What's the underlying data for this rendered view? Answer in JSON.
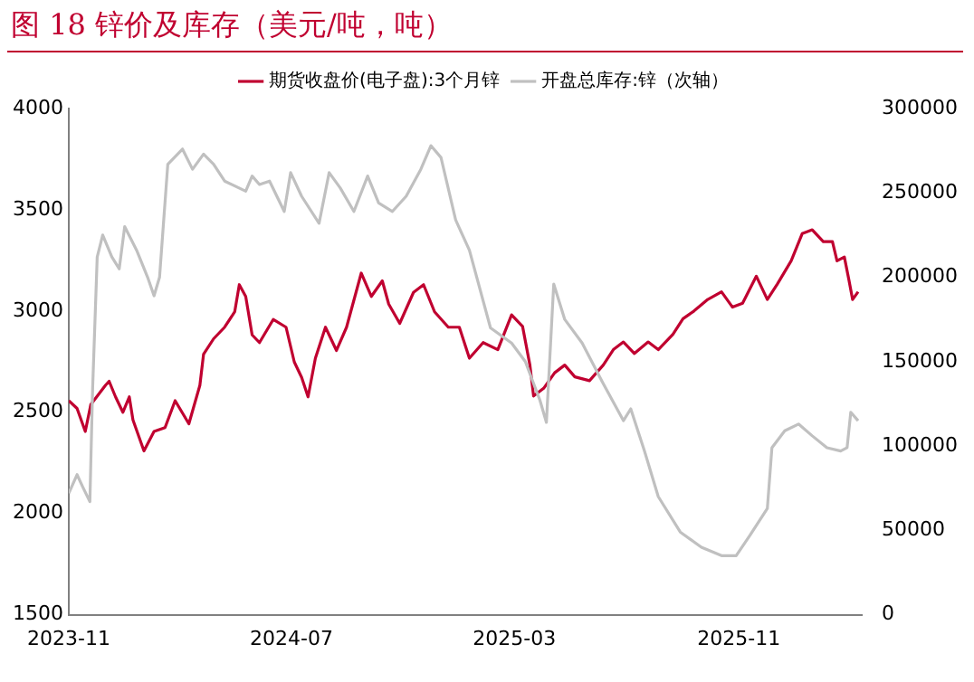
{
  "chart_data": {
    "type": "line",
    "title": "图 18 锌价及库存（美元/吨，吨）",
    "xlim": [
      "2023-11-01",
      "2026-03-15"
    ],
    "xticks": [
      "2023-11",
      "2024-07",
      "2025-03",
      "2025-11"
    ],
    "ylim": [
      1500,
      4000
    ],
    "yticks": [
      1500,
      2000,
      2500,
      3000,
      3500,
      4000
    ],
    "y2lim": [
      0,
      300000
    ],
    "y2ticks": [
      0,
      50000,
      100000,
      150000,
      200000,
      250000,
      300000
    ],
    "grid": false,
    "legend": "top",
    "marker": "none",
    "line_style": "solid",
    "series": [
      {
        "name": "期货收盘价(电子盘):3个月锌",
        "color": "#c00030",
        "x": [
          "2023-11-01",
          "2023-11-10",
          "2023-11-19",
          "2023-11-25",
          "2023-12-11",
          "2023-12-15",
          "2023-12-22",
          "2023-12-30",
          "2024-01-06",
          "2024-01-10",
          "2024-01-22",
          "2024-02-02",
          "2024-02-14",
          "2024-02-25",
          "2024-03-11",
          "2024-03-23",
          "2024-03-27",
          "2024-04-07",
          "2024-04-19",
          "2024-04-30",
          "2024-05-05",
          "2024-05-12",
          "2024-05-19",
          "2024-05-27",
          "2024-06-11",
          "2024-06-25",
          "2024-07-04",
          "2024-07-12",
          "2024-07-19",
          "2024-07-27",
          "2024-08-07",
          "2024-08-19",
          "2024-08-30",
          "2024-09-15",
          "2024-09-26",
          "2024-10-08",
          "2024-10-15",
          "2024-10-27",
          "2024-11-11",
          "2024-11-22",
          "2024-12-04",
          "2024-12-19",
          "2024-12-31",
          "2025-01-11",
          "2025-01-26",
          "2025-02-11",
          "2025-02-26",
          "2025-03-10",
          "2025-03-18",
          "2025-03-22",
          "2025-04-02",
          "2025-04-14",
          "2025-04-25",
          "2025-05-06",
          "2025-05-22",
          "2025-06-06",
          "2025-06-17",
          "2025-06-28",
          "2025-07-10",
          "2025-07-25",
          "2025-08-05",
          "2025-08-21",
          "2025-09-01",
          "2025-09-13",
          "2025-09-28",
          "2025-10-13",
          "2025-10-25",
          "2025-11-05",
          "2025-11-20",
          "2025-12-02",
          "2025-12-13",
          "2025-12-28",
          "2026-01-09",
          "2026-01-20",
          "2026-02-01",
          "2026-02-11",
          "2026-02-16",
          "2026-02-24",
          "2026-03-01",
          "2026-03-05",
          "2026-03-11"
        ],
        "values": [
          2557,
          2519,
          2405,
          2538,
          2633,
          2653,
          2576,
          2500,
          2576,
          2462,
          2309,
          2405,
          2424,
          2557,
          2443,
          2633,
          2786,
          2863,
          2920,
          2996,
          3130,
          3072,
          2882,
          2844,
          2958,
          2920,
          2748,
          2672,
          2576,
          2767,
          2920,
          2805,
          2920,
          3187,
          3072,
          3149,
          3034,
          2939,
          3092,
          3130,
          2996,
          2920,
          2920,
          2767,
          2844,
          2809,
          2981,
          2924,
          2733,
          2580,
          2618,
          2695,
          2733,
          2675,
          2656,
          2733,
          2809,
          2847,
          2790,
          2847,
          2809,
          2885,
          2962,
          3000,
          3057,
          3095,
          3019,
          3038,
          3172,
          3057,
          3134,
          3248,
          3382,
          3401,
          3343,
          3343,
          3248,
          3267,
          3153,
          3057,
          3095
        ]
      },
      {
        "name": "开盘总库存:锌（次轴）",
        "color": "#c0c0c0",
        "axis": "y2",
        "x": [
          "2023-11-01",
          "2023-11-10",
          "2023-11-16",
          "2023-11-24",
          "2023-11-27",
          "2023-12-02",
          "2023-12-08",
          "2023-12-18",
          "2023-12-26",
          "2024-01-01",
          "2024-01-14",
          "2024-01-26",
          "2024-02-02",
          "2024-02-08",
          "2024-02-17",
          "2024-03-04",
          "2024-03-15",
          "2024-03-27",
          "2024-04-07",
          "2024-04-19",
          "2024-05-12",
          "2024-05-19",
          "2024-05-27",
          "2024-06-07",
          "2024-06-23",
          "2024-06-30",
          "2024-07-12",
          "2024-07-31",
          "2024-08-11",
          "2024-08-23",
          "2024-09-07",
          "2024-09-22",
          "2024-10-04",
          "2024-10-19",
          "2024-11-03",
          "2024-11-19",
          "2024-11-30",
          "2024-12-11",
          "2024-12-27",
          "2025-01-11",
          "2025-02-03",
          "2025-02-26",
          "2025-03-13",
          "2025-03-29",
          "2025-04-05",
          "2025-04-13",
          "2025-04-25",
          "2025-05-14",
          "2025-06-05",
          "2025-06-28",
          "2025-07-06",
          "2025-07-21",
          "2025-08-05",
          "2025-08-29",
          "2025-09-21",
          "2025-10-13",
          "2025-10-29",
          "2025-11-13",
          "2025-12-02",
          "2025-12-07",
          "2025-12-21",
          "2026-01-05",
          "2026-01-20",
          "2026-02-05",
          "2026-02-20",
          "2026-02-27",
          "2026-03-03",
          "2026-03-11"
        ],
        "values": [
          72000,
          83000,
          76000,
          67000,
          134000,
          212000,
          225000,
          212000,
          205000,
          230000,
          216000,
          200000,
          189000,
          200000,
          267000,
          276000,
          264000,
          273000,
          267000,
          257000,
          251000,
          260000,
          255000,
          257000,
          239000,
          262000,
          248000,
          232000,
          262000,
          253000,
          239000,
          260000,
          244000,
          239000,
          248000,
          264000,
          278000,
          271000,
          234000,
          216000,
          170000,
          161000,
          150000,
          127000,
          114000,
          196000,
          175000,
          161000,
          138000,
          115000,
          122000,
          97000,
          70000,
          49000,
          40000,
          35000,
          35000,
          47000,
          63000,
          99000,
          109000,
          113000,
          106000,
          99000,
          97000,
          99000,
          120000,
          115000
        ]
      }
    ]
  }
}
